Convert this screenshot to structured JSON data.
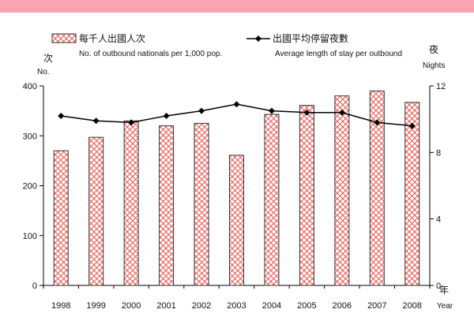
{
  "chart_data": {
    "type": "bar",
    "categories": [
      "1998",
      "1999",
      "2000",
      "2001",
      "2002",
      "2003",
      "2004",
      "2005",
      "2006",
      "2007",
      "2008"
    ],
    "series": [
      {
        "name": "每千人出國人次",
        "name_en": "No. of outbound nationals per 1,000 pop.",
        "type": "bar",
        "axis": "left",
        "values": [
          270,
          297,
          330,
          320,
          325,
          261,
          343,
          361,
          380,
          390,
          367
        ],
        "color": "#e8564f",
        "pattern": "cross-hatch"
      },
      {
        "name": "出國平均停留夜數",
        "name_en": "Average length of stay per outbound",
        "type": "line",
        "axis": "right",
        "values": [
          10.2,
          9.9,
          9.8,
          10.2,
          10.5,
          10.9,
          10.5,
          10.4,
          10.4,
          9.8,
          9.6
        ],
        "color": "#000000",
        "marker": "diamond"
      }
    ],
    "y_left": {
      "label_zh": "次",
      "label_en": "No.",
      "ylim": [
        0,
        400
      ],
      "ticks": [
        0,
        100,
        200,
        300,
        400
      ]
    },
    "y_right": {
      "label_zh": "夜",
      "label_en": "Nights",
      "ylim": [
        0,
        12
      ],
      "ticks": [
        0,
        4,
        8,
        12
      ]
    },
    "x_axis": {
      "label_zh": "年",
      "label_en": "Year"
    },
    "grid": false,
    "legend_position": "top"
  }
}
